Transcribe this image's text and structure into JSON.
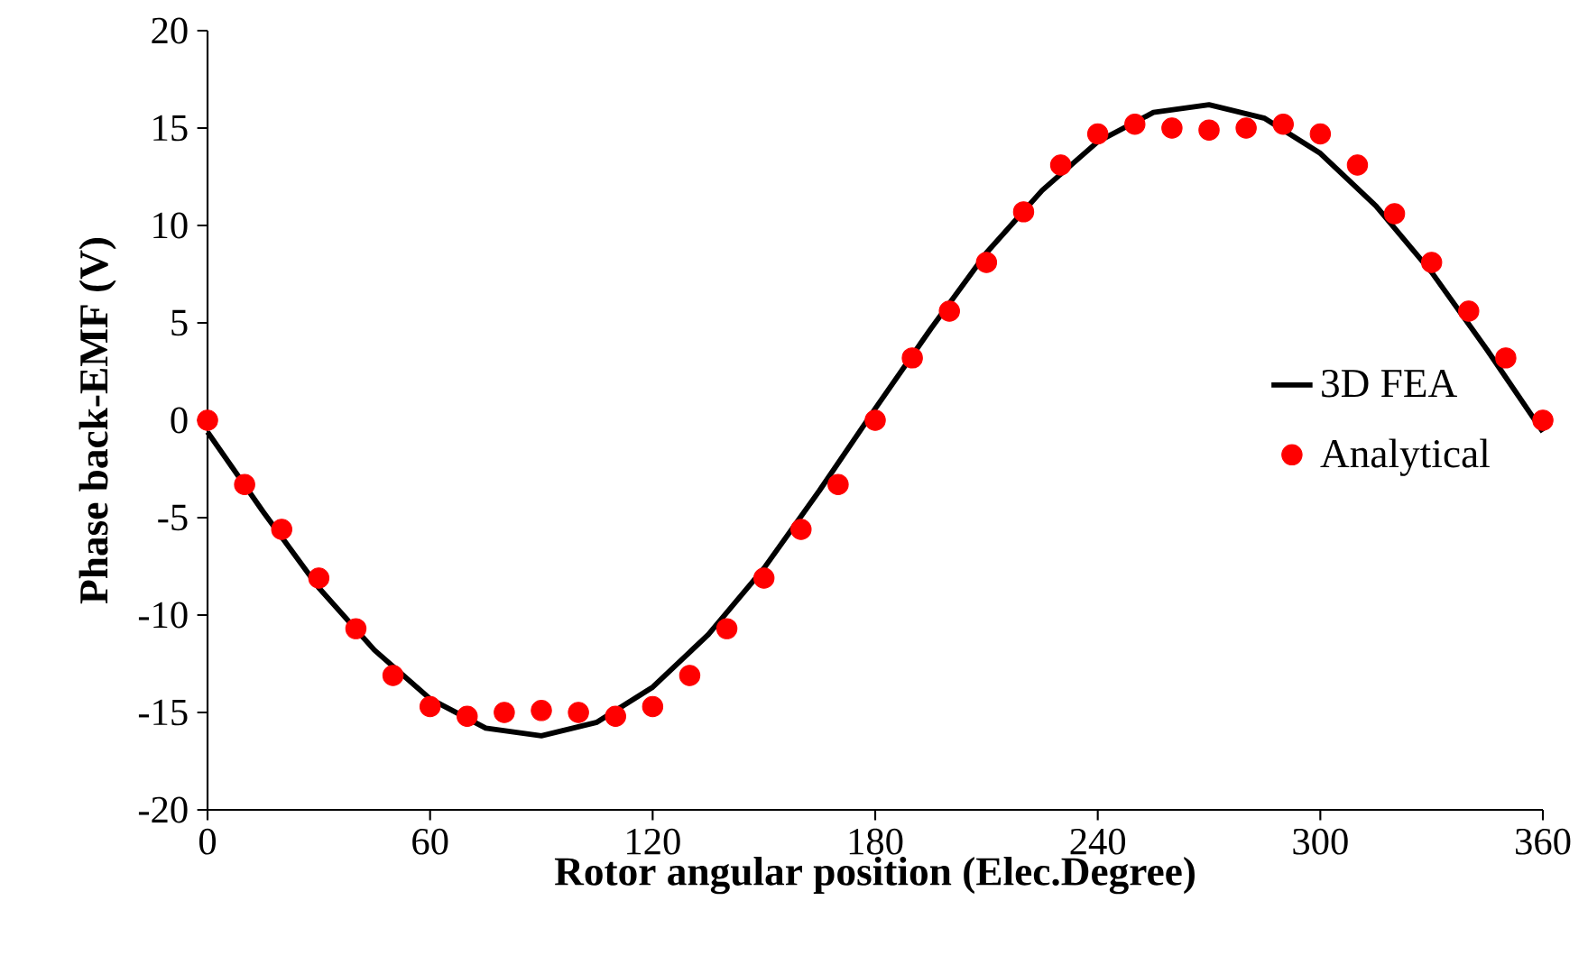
{
  "chart_data": {
    "type": "line",
    "xlabel": "Rotor angular position (Elec.Degree)",
    "ylabel": "Phase back-EMF (V)",
    "xlim": [
      0,
      360
    ],
    "xticks": [
      0,
      60,
      120,
      180,
      240,
      300,
      360
    ],
    "ylim": [
      -20,
      20
    ],
    "yticks": [
      -20,
      -15,
      -10,
      -5,
      0,
      5,
      10,
      15,
      20
    ],
    "grid": false,
    "legend": "right",
    "series": [
      {
        "name": "3D FEA",
        "color": "#000000",
        "marker": "none",
        "line_style": "solid",
        "x": [
          0,
          15,
          30,
          45,
          60,
          75,
          90,
          105,
          120,
          135,
          150,
          165,
          180,
          195,
          210,
          225,
          240,
          255,
          270,
          285,
          300,
          315,
          330,
          345,
          360
        ],
        "values": [
          -0.6,
          -4.7,
          -8.6,
          -11.8,
          -14.3,
          -15.8,
          -16.2,
          -15.5,
          -13.7,
          -11.0,
          -7.6,
          -3.6,
          0.6,
          4.7,
          8.6,
          11.8,
          14.3,
          15.8,
          16.2,
          15.5,
          13.7,
          11.0,
          7.6,
          3.6,
          -0.6
        ]
      },
      {
        "name": "Analytical",
        "type": "scatter",
        "color": "#ff0000",
        "marker": "circle",
        "x": [
          0,
          10,
          20,
          30,
          40,
          50,
          60,
          70,
          80,
          90,
          100,
          110,
          120,
          130,
          140,
          150,
          160,
          170,
          180,
          190,
          200,
          210,
          220,
          230,
          240,
          250,
          260,
          270,
          280,
          290,
          300,
          310,
          320,
          330,
          340,
          350,
          360
        ],
        "values": [
          0,
          -3.3,
          -5.6,
          -8.1,
          -10.7,
          -13.1,
          -14.7,
          -15.2,
          -15.0,
          -14.9,
          -15.0,
          -15.2,
          -14.7,
          -13.1,
          -10.7,
          -8.1,
          -5.6,
          -3.3,
          0,
          3.2,
          5.6,
          8.1,
          10.7,
          13.1,
          14.7,
          15.2,
          15.0,
          14.9,
          15.0,
          15.2,
          14.7,
          13.1,
          10.6,
          8.1,
          5.6,
          3.2,
          0
        ]
      }
    ]
  }
}
